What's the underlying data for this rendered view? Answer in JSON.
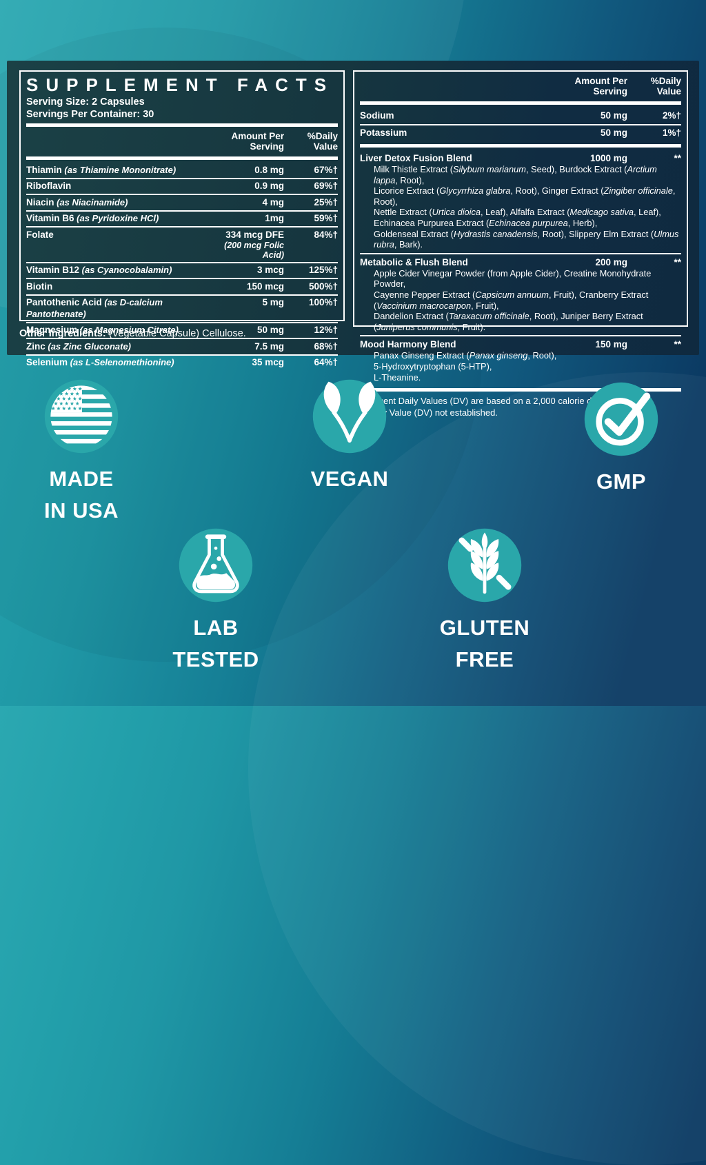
{
  "colors": {
    "accent_teal": "#2aa7aa",
    "deep_navy": "#0b3a63",
    "panel_dark_teal": "#16363f",
    "text": "#ffffff"
  },
  "left": {
    "title": "SUPPLEMENT FACTS",
    "serving_size": "Serving Size: 2 Capsules",
    "servings_per_container": "Servings Per Container: 30",
    "col_amount": "Amount Per Serving",
    "col_dv": "%Daily Value",
    "nutrients": [
      {
        "name": "Thiamin",
        "note": "(as Thiamine Mononitrate)",
        "amount": "0.8 mg",
        "dv": "67%†"
      },
      {
        "name": "Riboflavin",
        "note": "",
        "amount": "0.9 mg",
        "dv": "69%†"
      },
      {
        "name": "Niacin",
        "note": "(as Niacinamide)",
        "amount": "4 mg",
        "dv": "25%†"
      },
      {
        "name": "Vitamin B6",
        "note": "(as Pyridoxine HCl)",
        "amount": "1mg",
        "dv": "59%†"
      },
      {
        "name": "Folate",
        "note": "",
        "amount": "334 mcg DFE",
        "amount_note": "(200 mcg Folic Acid)",
        "dv": "84%†"
      },
      {
        "name": "Vitamin B12",
        "note": "(as Cyanocobalamin)",
        "amount": "3 mcg",
        "dv": "125%†"
      },
      {
        "name": "Biotin",
        "note": "",
        "amount": "150 mcg",
        "dv": "500%†"
      },
      {
        "name": "Pantothenic Acid",
        "note": "(as D-calcium Pantothenate)",
        "amount": "5 mg",
        "dv": "100%†"
      },
      {
        "name": "Magnesium",
        "note": "(as Magnesium Citrate)",
        "amount": "50 mg",
        "dv": "12%†"
      },
      {
        "name": "Zinc",
        "note": "(as Zinc Gluconate)",
        "amount": "7.5 mg",
        "dv": "68%†"
      },
      {
        "name": "Selenium",
        "note": "(as L-Selenomethionine)",
        "amount": "35 mcg",
        "dv": "64%†"
      }
    ],
    "other_ingredients_label": "Other Ingredients:",
    "other_ingredients": " (Vegetable Capsule) Cellulose."
  },
  "right": {
    "col_amount": "Amount Per Serving",
    "col_dv": "%Daily Value",
    "minerals": [
      {
        "name": "Sodium",
        "amount": "50 mg",
        "dv": "2%†"
      },
      {
        "name": "Potassium",
        "amount": "50 mg",
        "dv": "1%†"
      }
    ],
    "blends": [
      {
        "name": "Liver Detox Fusion Blend",
        "amount": "1000 mg",
        "dv": "**",
        "lines": [
          [
            {
              "t": "Milk Thistle Extract ("
            },
            {
              "t": "Silybum marianum",
              "i": true
            },
            {
              "t": ", Seed), Burdock Extract ("
            },
            {
              "t": "Arctium lappa",
              "i": true
            },
            {
              "t": ", Root),"
            }
          ],
          [
            {
              "t": "Licorice Extract ("
            },
            {
              "t": "Glycyrrhiza glabra",
              "i": true
            },
            {
              "t": ", Root), Ginger Extract ("
            },
            {
              "t": "Zingiber officinale",
              "i": true
            },
            {
              "t": ", Root),"
            }
          ],
          [
            {
              "t": "Nettle Extract ("
            },
            {
              "t": "Urtica dioica",
              "i": true
            },
            {
              "t": ", Leaf), Alfalfa Extract ("
            },
            {
              "t": "Medicago sativa",
              "i": true
            },
            {
              "t": ", Leaf),"
            }
          ],
          [
            {
              "t": "Echinacea Purpurea Extract ("
            },
            {
              "t": "Echinacea purpurea",
              "i": true
            },
            {
              "t": ", Herb),"
            }
          ],
          [
            {
              "t": "Goldenseal Extract ("
            },
            {
              "t": "Hydrastis canadensis",
              "i": true
            },
            {
              "t": ", Root), Slippery Elm Extract ("
            },
            {
              "t": "Ulmus rubra",
              "i": true
            },
            {
              "t": ", Bark)."
            }
          ]
        ]
      },
      {
        "name": "Metabolic & Flush Blend",
        "amount": "200 mg",
        "dv": "**",
        "lines": [
          [
            {
              "t": "Apple Cider Vinegar Powder (from Apple Cider), Creatine Monohydrate Powder,"
            }
          ],
          [
            {
              "t": "Cayenne Pepper Extract ("
            },
            {
              "t": "Capsicum annuum",
              "i": true
            },
            {
              "t": ", Fruit), Cranberry Extract ("
            },
            {
              "t": "Vaccinium macrocarpon",
              "i": true
            },
            {
              "t": ", Fruit),"
            }
          ],
          [
            {
              "t": "Dandelion Extract ("
            },
            {
              "t": "Taraxacum officinale",
              "i": true
            },
            {
              "t": ", Root), Juniper Berry Extract ("
            },
            {
              "t": "Juniperus communis",
              "i": true
            },
            {
              "t": ", Fruit)."
            }
          ]
        ]
      },
      {
        "name": "Mood Harmony Blend",
        "amount": "150 mg",
        "dv": "**",
        "lines": [
          [
            {
              "t": "Panax Ginseng Extract ("
            },
            {
              "t": "Panax ginseng",
              "i": true
            },
            {
              "t": ", Root),"
            }
          ],
          [
            {
              "t": "5-Hydroxytryptophan (5-HTP),"
            }
          ],
          [
            {
              "t": "L-Theanine."
            }
          ]
        ]
      }
    ],
    "footnotes": [
      "†Percent Daily Values (DV) are based on a 2,000 calorie diet.",
      "**Daily Value (DV) not established."
    ]
  },
  "badges": [
    {
      "id": "made-in-usa",
      "lines": [
        "MADE",
        "IN USA"
      ]
    },
    {
      "id": "vegan",
      "lines": [
        "VEGAN"
      ]
    },
    {
      "id": "gmp",
      "lines": [
        "GMP"
      ]
    },
    {
      "id": "lab-tested",
      "lines": [
        "LAB",
        "TESTED"
      ]
    },
    {
      "id": "gluten-free",
      "lines": [
        "GLUTEN",
        "FREE"
      ]
    }
  ]
}
